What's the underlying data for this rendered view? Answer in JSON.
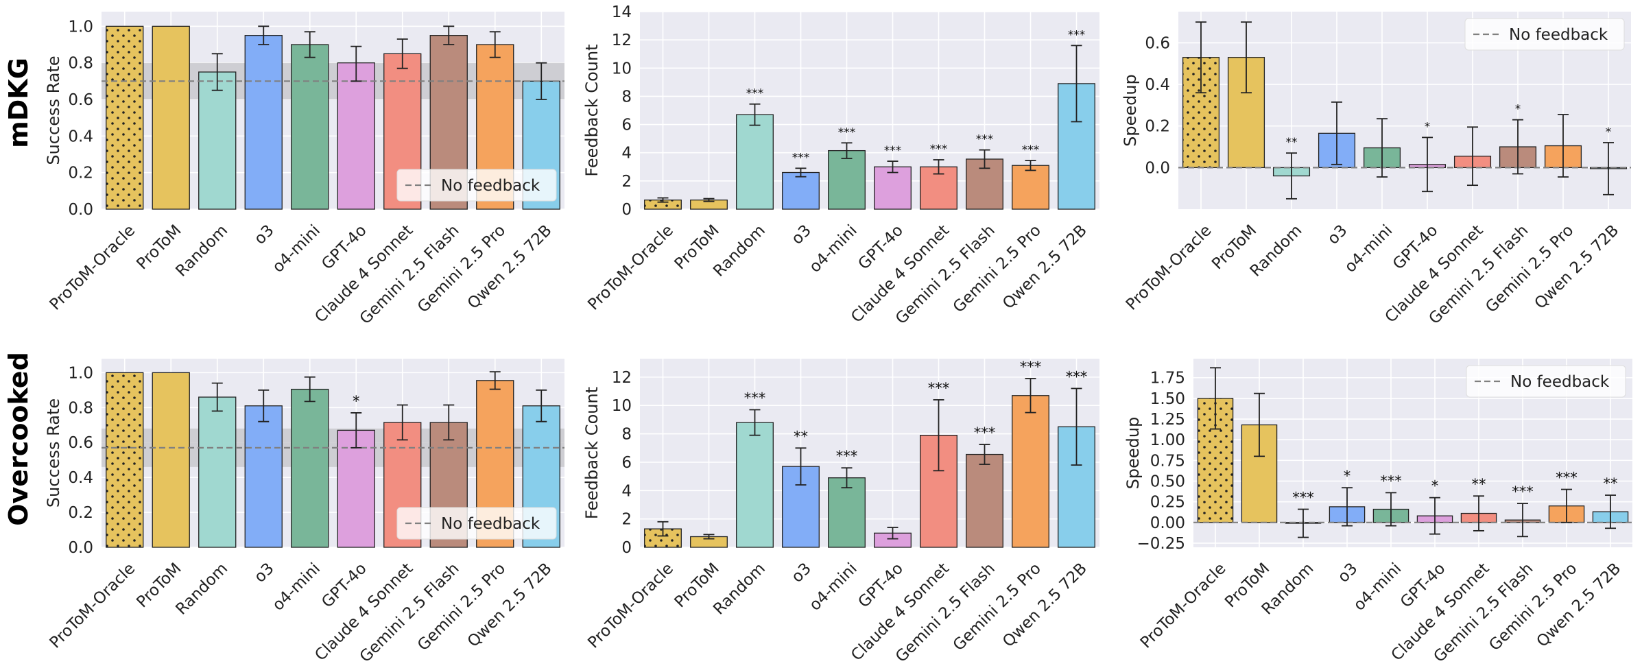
{
  "rows": [
    {
      "title": "mDKG"
    },
    {
      "title": "Overcooked"
    }
  ],
  "colors": {
    "panel_bg": "#EAEAF2",
    "grid": "#ffffff",
    "baseline": "#808080",
    "band": "#C9C9CE",
    "bars": [
      "#E6C35E",
      "#E6C35E",
      "#A0D8D0",
      "#82ADF7",
      "#79B699",
      "#DDA0DD",
      "#F28E81",
      "#BA8B7C",
      "#F5A35D",
      "#88CEEB"
    ]
  },
  "chart_data": [
    {
      "type": "bar",
      "id": "mdkg-success",
      "row": 0,
      "col": 0,
      "ylabel": "Success Rate",
      "ylim": [
        0,
        1.08
      ],
      "yticks": [
        0,
        0.2,
        0.4,
        0.6,
        0.8,
        1.0
      ],
      "ytick_labels": [
        "0.0",
        "0.2",
        "0.4",
        "0.6",
        "0.8",
        "1.0"
      ],
      "categories": [
        "ProToM-Oracle",
        "ProToM",
        "Random",
        "o3",
        "o4-mini",
        "GPT-4o",
        "Claude 4 Sonnet",
        "Gemini 2.5 Flash",
        "Gemini 2.5 Pro",
        "Qwen 2.5 72B"
      ],
      "values": [
        1.0,
        1.0,
        0.75,
        0.95,
        0.9,
        0.8,
        0.85,
        0.95,
        0.9,
        0.7
      ],
      "err_low": [
        0,
        0,
        0.1,
        0.05,
        0.07,
        0.1,
        0.08,
        0.05,
        0.07,
        0.1
      ],
      "err_high": [
        0,
        0,
        0.1,
        0.05,
        0.07,
        0.09,
        0.08,
        0.05,
        0.07,
        0.1
      ],
      "sig": [
        "",
        "",
        "",
        "",
        "",
        "",
        "",
        "",
        "",
        ""
      ],
      "baseline": {
        "label": "No feedback",
        "value": 0.7,
        "band": [
          0.6,
          0.8
        ]
      },
      "legend": "bottom-right"
    },
    {
      "type": "bar",
      "id": "mdkg-feedback",
      "row": 0,
      "col": 1,
      "ylabel": "Feedback Count",
      "ylim": [
        0,
        14
      ],
      "yticks": [
        0,
        2,
        4,
        6,
        8,
        10,
        12,
        14
      ],
      "ytick_labels": [
        "0",
        "2",
        "4",
        "6",
        "8",
        "10",
        "12",
        "14"
      ],
      "categories": [
        "ProToM-Oracle",
        "ProToM",
        "Random",
        "o3",
        "o4-mini",
        "GPT-4o",
        "Claude 4 Sonnet",
        "Gemini 2.5 Flash",
        "Gemini 2.5 Pro",
        "Qwen 2.5 72B"
      ],
      "values": [
        0.65,
        0.65,
        6.7,
        2.6,
        4.15,
        3.0,
        3.0,
        3.55,
        3.1,
        8.9
      ],
      "err_low": [
        0.15,
        0.1,
        0.75,
        0.3,
        0.55,
        0.4,
        0.5,
        0.65,
        0.35,
        2.7
      ],
      "err_high": [
        0.15,
        0.1,
        0.75,
        0.3,
        0.55,
        0.4,
        0.5,
        0.65,
        0.35,
        2.7
      ],
      "sig": [
        "",
        "",
        "***",
        "***",
        "***",
        "***",
        "***",
        "***",
        "***",
        "***"
      ]
    },
    {
      "type": "bar",
      "id": "mdkg-speedup",
      "row": 0,
      "col": 2,
      "ylabel": "Speedup",
      "ylim": [
        -0.2,
        0.75
      ],
      "yticks": [
        0,
        0.2,
        0.4,
        0.6
      ],
      "ytick_labels": [
        "0.0",
        "0.2",
        "0.4",
        "0.6"
      ],
      "categories": [
        "ProToM-Oracle",
        "ProToM",
        "Random",
        "o3",
        "o4-mini",
        "GPT-4o",
        "Claude 4 Sonnet",
        "Gemini 2.5 Flash",
        "Gemini 2.5 Pro",
        "Qwen 2.5 72B"
      ],
      "values": [
        0.53,
        0.53,
        -0.04,
        0.165,
        0.095,
        0.015,
        0.055,
        0.1,
        0.105,
        -0.005
      ],
      "err_low": [
        0.17,
        0.17,
        0.11,
        0.15,
        0.14,
        0.13,
        0.14,
        0.13,
        0.15,
        0.125
      ],
      "err_high": [
        0.17,
        0.17,
        0.11,
        0.15,
        0.14,
        0.13,
        0.14,
        0.13,
        0.15,
        0.125
      ],
      "sig": [
        "",
        "",
        "**",
        "",
        "",
        "*",
        "",
        "*",
        "",
        "*"
      ],
      "baseline": {
        "label": "No feedback",
        "value": 0.0
      },
      "legend": "top-right"
    },
    {
      "type": "bar",
      "id": "overcooked-success",
      "row": 1,
      "col": 0,
      "ylabel": "Success Rate",
      "ylim": [
        0,
        1.08
      ],
      "yticks": [
        0,
        0.2,
        0.4,
        0.6,
        0.8,
        1.0
      ],
      "ytick_labels": [
        "0.0",
        "0.2",
        "0.4",
        "0.6",
        "0.8",
        "1.0"
      ],
      "categories": [
        "ProToM-Oracle",
        "ProToM",
        "Random",
        "o3",
        "o4-mini",
        "GPT-4o",
        "Claude 4 Sonnet",
        "Gemini 2.5 Flash",
        "Gemini 2.5 Pro",
        "Qwen 2.5 72B"
      ],
      "values": [
        1.0,
        1.0,
        0.86,
        0.81,
        0.905,
        0.67,
        0.715,
        0.715,
        0.955,
        0.81
      ],
      "err_low": [
        0,
        0,
        0.08,
        0.09,
        0.07,
        0.1,
        0.1,
        0.1,
        0.05,
        0.09
      ],
      "err_high": [
        0,
        0,
        0.08,
        0.09,
        0.07,
        0.1,
        0.1,
        0.1,
        0.05,
        0.09
      ],
      "sig": [
        "",
        "",
        "",
        "",
        "",
        "*",
        "",
        "",
        "",
        ""
      ],
      "baseline": {
        "label": "No feedback",
        "value": 0.57,
        "band": [
          0.46,
          0.68
        ]
      },
      "legend": "bottom-right"
    },
    {
      "type": "bar",
      "id": "overcooked-feedback",
      "row": 1,
      "col": 1,
      "ylabel": "Feedback Count",
      "ylim": [
        0,
        13.3
      ],
      "yticks": [
        0,
        2,
        4,
        6,
        8,
        10,
        12
      ],
      "ytick_labels": [
        "0",
        "2",
        "4",
        "6",
        "8",
        "10",
        "12"
      ],
      "categories": [
        "ProToM-Oracle",
        "ProToM",
        "Random",
        "o3",
        "o4-mini",
        "GPT-4o",
        "Claude 4 Sonnet",
        "Gemini 2.5 Flash",
        "Gemini 2.5 Pro",
        "Qwen 2.5 72B"
      ],
      "values": [
        1.3,
        0.75,
        8.8,
        5.7,
        4.9,
        1.0,
        7.9,
        6.55,
        10.7,
        8.5
      ],
      "err_low": [
        0.5,
        0.15,
        0.9,
        1.3,
        0.7,
        0.4,
        2.5,
        0.7,
        1.2,
        2.7
      ],
      "err_high": [
        0.5,
        0.15,
        0.9,
        1.3,
        0.7,
        0.4,
        2.5,
        0.7,
        1.2,
        2.7
      ],
      "sig": [
        "",
        "",
        "***",
        "**",
        "***",
        "",
        "***",
        "***",
        "***",
        "***"
      ]
    },
    {
      "type": "bar",
      "id": "overcooked-speedup",
      "row": 1,
      "col": 2,
      "ylabel": "Speedup",
      "ylim": [
        -0.3,
        1.98
      ],
      "yticks": [
        -0.25,
        0,
        0.25,
        0.5,
        0.75,
        1.0,
        1.25,
        1.5,
        1.75
      ],
      "ytick_labels": [
        "−0.25",
        "0.00",
        "0.25",
        "0.50",
        "0.75",
        "1.00",
        "1.25",
        "1.50",
        "1.75"
      ],
      "categories": [
        "ProToM-Oracle",
        "ProToM",
        "Random",
        "o3",
        "o4-mini",
        "GPT-4o",
        "Claude 4 Sonnet",
        "Gemini 2.5 Flash",
        "Gemini 2.5 Pro",
        "Qwen 2.5 72B"
      ],
      "values": [
        1.5,
        1.18,
        -0.01,
        0.19,
        0.16,
        0.08,
        0.11,
        0.03,
        0.2,
        0.13
      ],
      "err_low": [
        0.37,
        0.38,
        0.17,
        0.23,
        0.2,
        0.22,
        0.21,
        0.2,
        0.2,
        0.2
      ],
      "err_high": [
        0.37,
        0.38,
        0.17,
        0.23,
        0.2,
        0.22,
        0.21,
        0.2,
        0.2,
        0.2
      ],
      "sig": [
        "",
        "",
        "***",
        "*",
        "***",
        "*",
        "**",
        "***",
        "***",
        "**"
      ],
      "baseline": {
        "label": "No feedback",
        "value": 0.0
      },
      "legend": "top-right"
    }
  ]
}
